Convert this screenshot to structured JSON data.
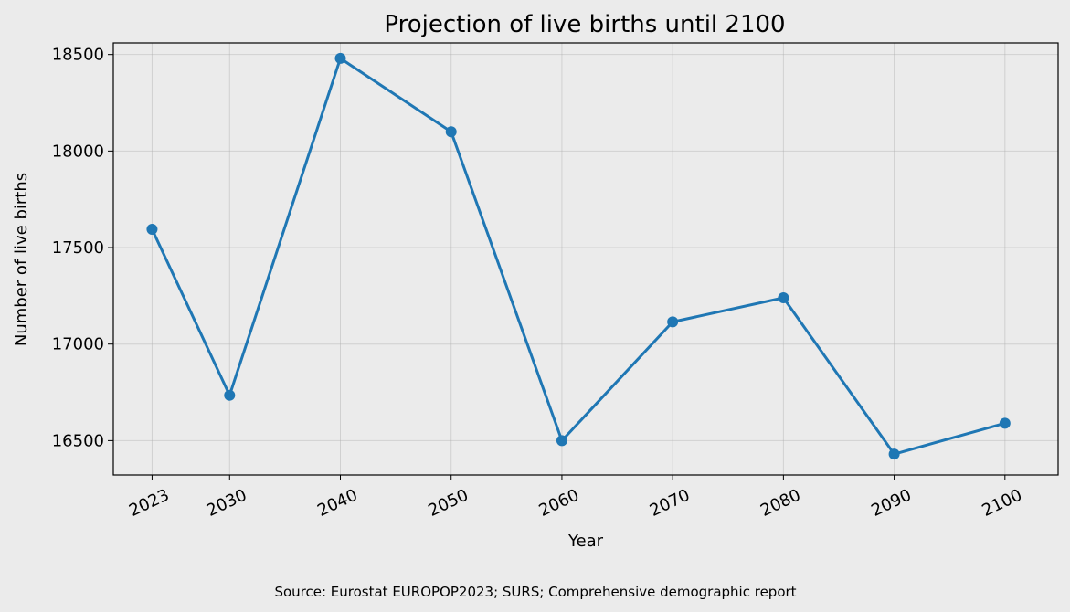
{
  "chart_data": {
    "type": "line",
    "title": "Projection of live births until 2100",
    "xlabel": "Year",
    "ylabel": "Number of live births",
    "source": "Source: Eurostat EUROPOP2023; SURS; Comprehensive demographic report",
    "x": [
      2023,
      2030,
      2040,
      2050,
      2060,
      2070,
      2080,
      2090,
      2100
    ],
    "xticks": [
      "2023",
      "2030",
      "2040",
      "2050",
      "2060",
      "2070",
      "2080",
      "2090",
      "2100"
    ],
    "series": [
      {
        "values": [
          17595,
          16735,
          18480,
          18100,
          16500,
          17115,
          17240,
          16430,
          16590
        ]
      }
    ],
    "yticks": [
      16500,
      17000,
      17500,
      18000,
      18500
    ],
    "xlim": [
      2019.5,
      2104.8
    ],
    "ylim": [
      16322,
      18560
    ],
    "grid": true,
    "line_color": "#1f77b4",
    "marker": "circle"
  }
}
